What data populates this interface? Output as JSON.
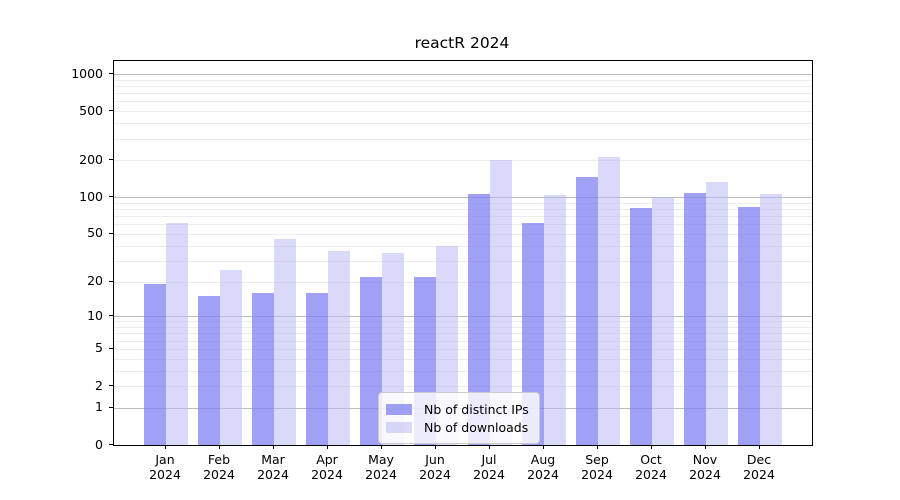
{
  "title": "reactR 2024",
  "chart_data": {
    "type": "bar",
    "title": "reactR 2024",
    "categories": [
      "Jan",
      "Feb",
      "Mar",
      "Apr",
      "May",
      "Jun",
      "Jul",
      "Aug",
      "Sep",
      "Oct",
      "Nov",
      "Dec"
    ],
    "category_year": "2024",
    "series": [
      {
        "name": "Nb of distinct IPs",
        "color": "rgba(123,123,240,0.72)",
        "values": [
          19,
          15,
          16,
          16,
          22,
          22,
          107,
          62,
          147,
          81,
          108,
          83
        ]
      },
      {
        "name": "Nb of downloads",
        "color": "rgba(183,183,243,0.52)",
        "values": [
          62,
          25,
          45,
          36,
          35,
          40,
          200,
          105,
          213,
          100,
          134,
          107
        ]
      }
    ],
    "yscale": "log1p",
    "yticks": [
      0,
      1,
      2,
      5,
      10,
      20,
      50,
      100,
      200,
      500,
      1000
    ],
    "ylim": [
      0,
      1275
    ],
    "grid": true,
    "legend_position": "lower center",
    "xlabel": "",
    "ylabel": ""
  },
  "colors": {
    "bar_distinct_ips": "rgba(123,123,240,0.72)",
    "bar_downloads": "rgba(183,183,243,0.52)",
    "grid_major": "#bdbdbd",
    "grid_minor": "#ececec",
    "axis": "#000000",
    "legend_border": "#cccccc"
  }
}
